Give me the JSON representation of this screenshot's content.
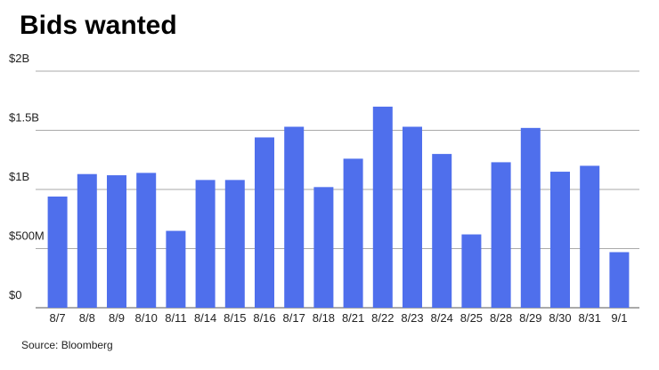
{
  "chart_data": {
    "type": "bar",
    "title": "Bids wanted",
    "source": "Source: Bloomberg",
    "categories": [
      "8/7",
      "8/8",
      "8/9",
      "8/10",
      "8/11",
      "8/14",
      "8/15",
      "8/16",
      "8/17",
      "8/18",
      "8/21",
      "8/22",
      "8/23",
      "8/24",
      "8/25",
      "8/28",
      "8/29",
      "8/30",
      "8/31",
      "9/1"
    ],
    "values": [
      940000000,
      1130000000,
      1120000000,
      1140000000,
      650000000,
      1080000000,
      1080000000,
      1440000000,
      1530000000,
      1020000000,
      1260000000,
      1700000000,
      1530000000,
      1300000000,
      620000000,
      1230000000,
      1520000000,
      1150000000,
      1200000000,
      470000000
    ],
    "color": "#4f6fec",
    "ylim": [
      0,
      2000000000
    ],
    "yticks": [
      {
        "value": 0,
        "label": "$0"
      },
      {
        "value": 500000000,
        "label": "$500M"
      },
      {
        "value": 1000000000,
        "label": "$1B"
      },
      {
        "value": 1500000000,
        "label": "$1.5B"
      },
      {
        "value": 2000000000,
        "label": "$2B"
      }
    ],
    "grid": true
  }
}
